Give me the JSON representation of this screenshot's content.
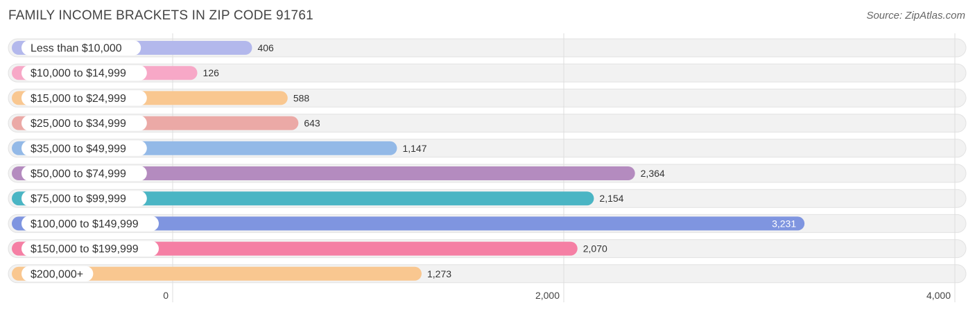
{
  "header": {
    "title": "FAMILY INCOME BRACKETS IN ZIP CODE 91761",
    "source": "Source: ZipAtlas.com"
  },
  "chart_data": {
    "type": "bar",
    "orientation": "horizontal",
    "title": "FAMILY INCOME BRACKETS IN ZIP CODE 91761",
    "xlabel": "",
    "ylabel": "",
    "xlim": [
      0,
      4000
    ],
    "ticks": [
      {
        "value": 0,
        "label": "0"
      },
      {
        "value": 2000,
        "label": "2,000"
      },
      {
        "value": 4000,
        "label": "4,000"
      }
    ],
    "grid": true,
    "categories": [
      "Less than $10,000",
      "$10,000 to $14,999",
      "$15,000 to $24,999",
      "$25,000 to $34,999",
      "$35,000 to $49,999",
      "$50,000 to $74,999",
      "$75,000 to $99,999",
      "$100,000 to $149,999",
      "$150,000 to $199,999",
      "$200,000+"
    ],
    "values": [
      406,
      126,
      588,
      643,
      1147,
      2364,
      2154,
      3231,
      2070,
      1273
    ],
    "value_labels": [
      "406",
      "126",
      "588",
      "643",
      "1,147",
      "2,364",
      "2,154",
      "3,231",
      "2,070",
      "1,273"
    ],
    "colors": [
      "#b3b8ec",
      "#f7a8c7",
      "#f9c790",
      "#eba9a6",
      "#93b9e7",
      "#b48bbf",
      "#4ab5c4",
      "#7f95e0",
      "#f57fa4",
      "#f9c790"
    ]
  }
}
